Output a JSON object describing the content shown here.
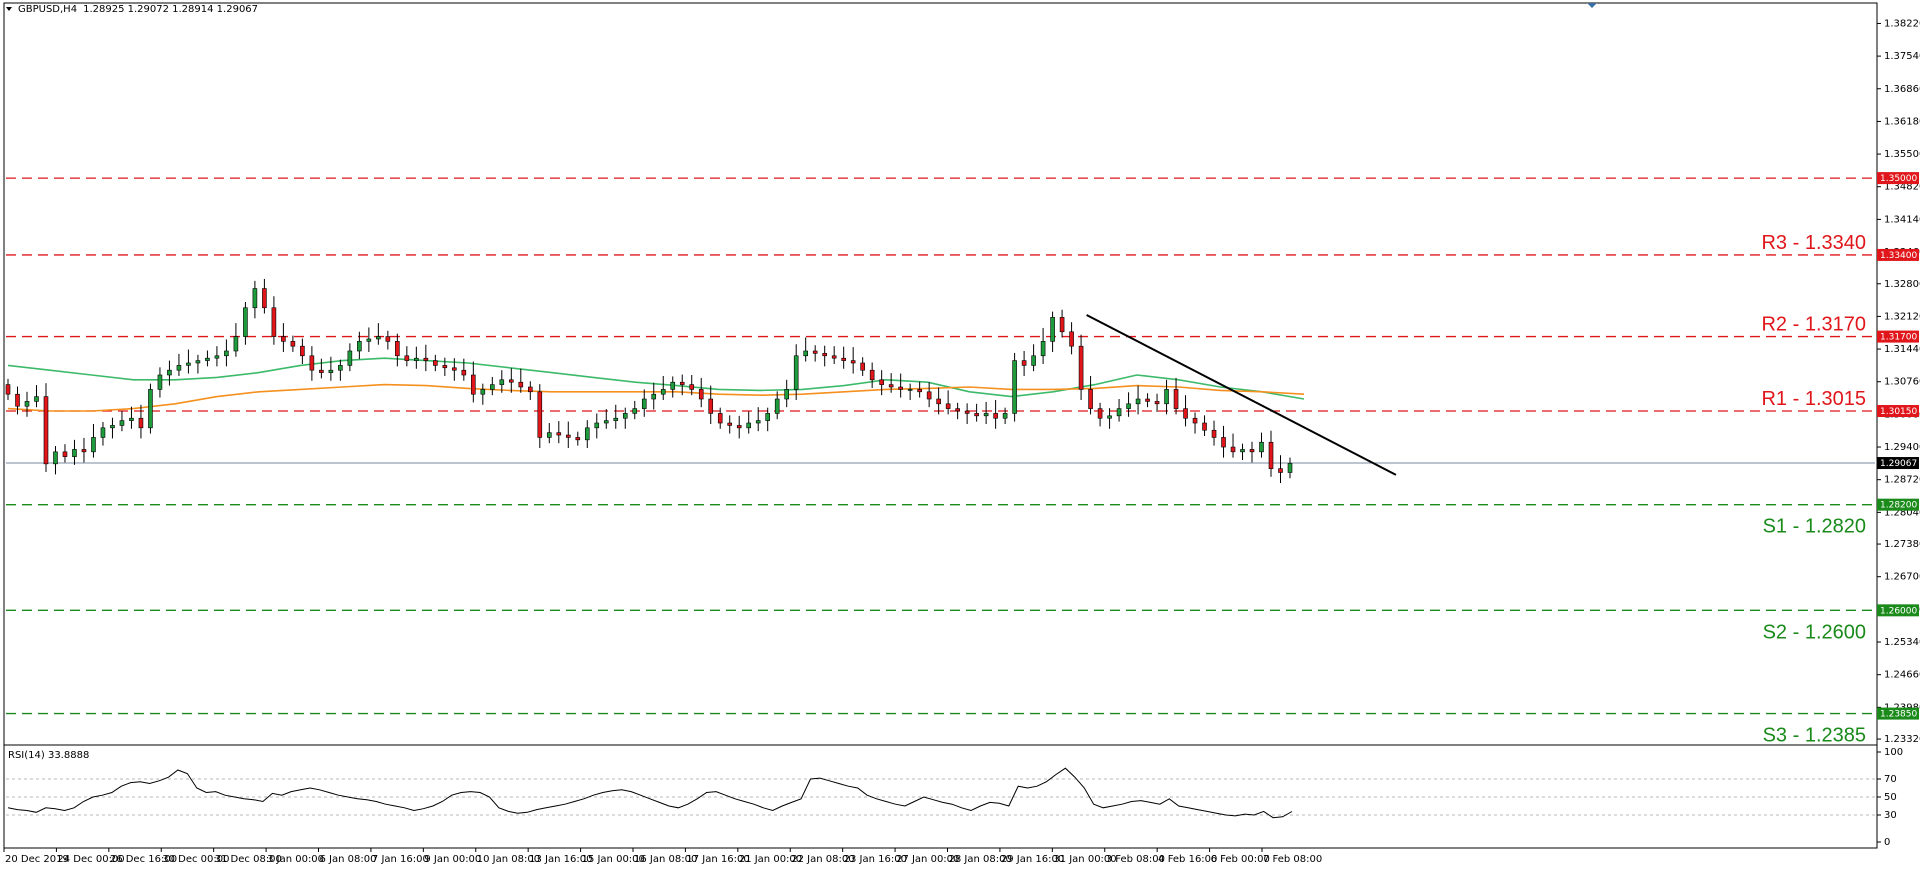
{
  "header": {
    "symbol": "GBPUSD,H4",
    "ohlc": "1.28925 1.29072 1.28914 1.29067"
  },
  "rsi_header": "RSI(14) 33.8888",
  "colors": {
    "up": "#1e9c3c",
    "down": "#e0161b",
    "ma_green": "#3cba6a",
    "ma_orange": "#f5901e",
    "resistance": "#e0161b",
    "support": "#1a8a1a",
    "current": "#000000",
    "trend": "#000000"
  },
  "chart_data": [
    {
      "type": "candlestick",
      "title": "",
      "ylim": [
        1.233,
        1.385
      ],
      "y_ticks": [
        "1.38220",
        "1.37540",
        "1.36860",
        "1.36180",
        "1.35500",
        "1.34820",
        "1.34140",
        "1.33460",
        "1.32800",
        "1.32120",
        "1.31440",
        "1.30760",
        "1.30080",
        "1.29400",
        "1.28720",
        "1.28040",
        "1.27380",
        "1.26700",
        "1.26020",
        "1.25340",
        "1.24660",
        "1.23980",
        "1.23320"
      ],
      "x_tick_labels": [
        "20 Dec 2019",
        "24 Dec 00:00",
        "26 Dec 16:00",
        "30 Dec 00:00",
        "31 Dec 08:00",
        "3 Jan 00:00",
        "6 Jan 08:00",
        "7 Jan 16:00",
        "9 Jan 00:00",
        "10 Jan 08:00",
        "13 Jan 16:00",
        "15 Jan 00:00",
        "16 Jan 08:00",
        "17 Jan 16:00",
        "21 Jan 00:00",
        "22 Jan 08:00",
        "23 Jan 16:00",
        "27 Jan 00:00",
        "28 Jan 08:00",
        "29 Jan 16:00",
        "31 Jan 00:00",
        "3 Feb 08:00",
        "4 Feb 16:00",
        "6 Feb 00:00",
        "7 Feb 08:00"
      ],
      "price_path": [
        1.305,
        1.3025,
        1.3035,
        1.3045,
        1.2905,
        1.293,
        1.292,
        1.2935,
        1.293,
        1.296,
        1.298,
        1.2985,
        1.2995,
        1.3,
        1.298,
        1.306,
        1.309,
        1.31,
        1.311,
        1.3115,
        1.312,
        1.3125,
        1.313,
        1.314,
        1.317,
        1.323,
        1.327,
        1.323,
        1.317,
        1.316,
        1.315,
        1.313,
        1.31,
        1.3095,
        1.31,
        1.311,
        1.314,
        1.316,
        1.3165,
        1.317,
        1.316,
        1.313,
        1.312,
        1.3125,
        1.312,
        1.311,
        1.3105,
        1.31,
        1.309,
        1.305,
        1.306,
        1.307,
        1.308,
        1.3075,
        1.3065,
        1.3055,
        1.296,
        1.297,
        1.2965,
        1.296,
        1.2955,
        1.298,
        1.299,
        1.2995,
        1.3,
        1.301,
        1.302,
        1.304,
        1.305,
        1.306,
        1.3075,
        1.307,
        1.306,
        1.304,
        1.301,
        1.299,
        1.2985,
        1.298,
        1.299,
        1.2995,
        1.301,
        1.304,
        1.306,
        1.313,
        1.314,
        1.3135,
        1.313,
        1.3125,
        1.312,
        1.3115,
        1.31,
        1.308,
        1.307,
        1.3065,
        1.306,
        1.306,
        1.3055,
        1.304,
        1.303,
        1.302,
        1.3015,
        1.301,
        1.3005,
        1.301,
        1.3,
        1.301,
        1.312,
        1.311,
        1.313,
        1.316,
        1.321,
        1.318,
        1.315,
        1.306,
        1.302,
        1.3,
        1.3005,
        1.302,
        1.303,
        1.304,
        1.3035,
        1.303,
        1.306,
        1.302,
        1.3,
        1.299,
        1.2975,
        1.296,
        1.294,
        1.293,
        1.2935,
        1.293,
        1.295,
        1.2895,
        1.2887,
        1.2906
      ],
      "levels": [
        {
          "name": "R3",
          "price": 1.334,
          "label": "R3 - 1.3340",
          "tag": "1.33400",
          "kind": "resistance"
        },
        {
          "name": "R2",
          "price": 1.317,
          "label": "R2 - 1.3170",
          "tag": "1.31700",
          "kind": "resistance"
        },
        {
          "name": "R1",
          "price": 1.3015,
          "label": "R1 - 1.3015",
          "tag": "1.30150",
          "kind": "resistance"
        },
        {
          "name": "S1",
          "price": 1.282,
          "label": "S1 - 1.2820",
          "tag": "1.28200",
          "kind": "support"
        },
        {
          "name": "S2",
          "price": 1.26,
          "label": "S2 - 1.2600",
          "tag": "1.26000",
          "kind": "support"
        },
        {
          "name": "S3",
          "price": 1.2385,
          "label": "S3 - 1.2385",
          "tag": "1.23850",
          "kind": "support"
        },
        {
          "name": "top",
          "price": 1.35,
          "label": "",
          "tag": "1.35000",
          "kind": "resistance"
        }
      ],
      "current_price": {
        "value": 1.29067,
        "tag": "1.29067"
      },
      "moving_averages": [
        {
          "name": "",
          "color_key": "ma_green",
          "points": [
            1.311,
            1.31,
            1.309,
            1.308,
            1.308,
            1.3085,
            1.3095,
            1.311,
            1.312,
            1.3125,
            1.312,
            1.3115,
            1.3105,
            1.3095,
            1.3085,
            1.3075,
            1.3068,
            1.306,
            1.3058,
            1.306,
            1.3068,
            1.308,
            1.3075,
            1.3055,
            1.3045,
            1.3055,
            1.307,
            1.309,
            1.308,
            1.3065,
            1.3055,
            1.304
          ]
        },
        {
          "name": "",
          "color_key": "ma_orange",
          "points": [
            1.302,
            1.3015,
            1.3015,
            1.302,
            1.303,
            1.3045,
            1.3055,
            1.306,
            1.3065,
            1.307,
            1.3068,
            1.3062,
            1.3058,
            1.3055,
            1.3055,
            1.3055,
            1.3055,
            1.305,
            1.3048,
            1.305,
            1.3055,
            1.306,
            1.3062,
            1.3065,
            1.306,
            1.306,
            1.3062,
            1.3068,
            1.3065,
            1.3058,
            1.3055,
            1.305
          ]
        }
      ],
      "trend_line": {
        "from": {
          "candle_index": 114,
          "price": 1.3215
        },
        "to": {
          "candle_index": 143,
          "price": 1.2882
        }
      }
    },
    {
      "type": "line",
      "title": "RSI(14) 33.8888",
      "ylim": [
        0,
        100
      ],
      "y_ticks": [
        "100",
        "70",
        "50",
        "30",
        "0"
      ],
      "values": [
        38,
        36,
        35,
        33,
        38,
        37,
        35,
        38,
        45,
        50,
        52,
        55,
        62,
        66,
        67,
        65,
        68,
        72,
        80,
        76,
        60,
        55,
        56,
        52,
        50,
        48,
        47,
        45,
        54,
        52,
        56,
        58,
        60,
        58,
        55,
        52,
        50,
        48,
        47,
        45,
        42,
        40,
        38,
        35,
        37,
        40,
        45,
        52,
        55,
        56,
        55,
        50,
        38,
        34,
        32,
        33,
        36,
        38,
        40,
        42,
        45,
        48,
        52,
        55,
        57,
        58,
        56,
        52,
        48,
        44,
        40,
        38,
        42,
        48,
        55,
        56,
        52,
        48,
        45,
        42,
        38,
        35,
        40,
        44,
        48,
        70,
        71,
        68,
        65,
        62,
        60,
        52,
        48,
        45,
        42,
        40,
        45,
        50,
        47,
        44,
        42,
        38,
        35,
        40,
        44,
        43,
        40,
        62,
        60,
        62,
        67,
        75,
        82,
        72,
        60,
        42,
        38,
        40,
        42,
        45,
        46,
        44,
        42,
        48,
        40,
        38,
        36,
        34,
        32,
        30,
        29,
        31,
        30,
        34,
        27,
        28,
        33.9
      ]
    }
  ]
}
